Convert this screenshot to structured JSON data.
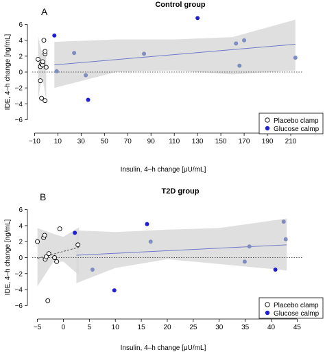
{
  "colors": {
    "glucose": "#1f1fd1",
    "glucose_faded": "#7f8cc1",
    "placebo_stroke": "#000000",
    "band": "#d9d9d9",
    "fit_glucose": "#6f79c9",
    "fit_placebo": "#555555"
  },
  "chart_data": [
    {
      "type": "scatter",
      "panel_letter": "A",
      "title": "Control group",
      "xlabel": "Insulin, 4–h change [μU/mL]",
      "ylabel": "IDE, 4–h change [ng/mL]",
      "xlim": [
        -12,
        220
      ],
      "ylim": [
        -7,
        7
      ],
      "x_ticks": [
        -10,
        10,
        30,
        50,
        70,
        90,
        110,
        130,
        150,
        170,
        190,
        210
      ],
      "y_ticks": [
        -6,
        -4,
        -2,
        0,
        2,
        4,
        6
      ],
      "legend": {
        "position": "bottom-right",
        "entries": [
          "Placebo clamp",
          "Glucose calmp"
        ]
      },
      "series": [
        {
          "name": "Placebo clamp",
          "x": [
            -7,
            -5,
            -5,
            -4,
            -3,
            -3,
            -2,
            -1,
            -1,
            0,
            -4,
            -1
          ],
          "y": [
            1.6,
            0.7,
            -1.1,
            1.0,
            0.9,
            1.3,
            4.0,
            2.3,
            2.6,
            0.6,
            -3.3,
            -3.6
          ]
        },
        {
          "name": "Glucose calmp",
          "x": [
            7,
            9,
            24,
            34,
            36,
            84,
            130,
            163,
            166,
            170,
            214
          ],
          "y": [
            4.6,
            0.1,
            2.4,
            -0.4,
            -3.5,
            2.3,
            6.8,
            3.6,
            0.8,
            4.0,
            1.8
          ]
        }
      ],
      "fit_placebo": {
        "x": [
          -7,
          0
        ],
        "y": [
          0.5,
          0.7
        ]
      },
      "band_placebo": {
        "x": [
          -7,
          -3.5,
          0
        ],
        "upper": [
          4.5,
          2.3,
          3.0
        ],
        "lower": [
          -3.5,
          -0.5,
          -3.5
        ]
      },
      "fit_glucose": {
        "x": [
          7,
          214
        ],
        "y": [
          0.9,
          3.5
        ]
      },
      "band_glucose": {
        "x": [
          7,
          60,
          110,
          160,
          214
        ],
        "upper": [
          3.8,
          4.1,
          4.1,
          4.4,
          6.6
        ],
        "lower": [
          -2.0,
          0.0,
          0.2,
          -0.3,
          0.2
        ]
      },
      "reference_line": 0
    },
    {
      "type": "scatter",
      "panel_letter": "B",
      "title": "T2D group",
      "xlabel": "Insulin, 4–h change [μU/mL]",
      "ylabel": "IDE, 4–h change [ng/mL]",
      "xlim": [
        -6,
        46
      ],
      "ylim": [
        -7,
        7
      ],
      "x_ticks": [
        -5,
        0,
        5,
        10,
        15,
        20,
        25,
        30,
        35,
        40,
        45
      ],
      "y_ticks": [
        -6,
        -4,
        -2,
        0,
        2,
        4,
        6
      ],
      "legend": {
        "position": "bottom-right",
        "entries": [
          "Placebo clamp",
          "Glucose calmp"
        ]
      },
      "series": [
        {
          "name": "Placebo clamp",
          "x": [
            -5,
            -3.8,
            -3.6,
            -3.5,
            -3.3,
            -2.8,
            -1.7,
            -1.3,
            -0.7,
            2.8,
            -3.0
          ],
          "y": [
            2.0,
            2.5,
            2.8,
            -0.2,
            0.1,
            0.5,
            0.0,
            -0.5,
            3.6,
            1.6,
            -5.4
          ]
        },
        {
          "name": "Glucose calmp",
          "x": [
            2.2,
            5.6,
            9.8,
            16.1,
            16.8,
            34.9,
            35.8,
            40.8,
            42.4,
            42.8
          ],
          "y": [
            3.1,
            -1.5,
            -4.1,
            4.2,
            2.0,
            -0.5,
            1.4,
            -1.5,
            4.5,
            2.3
          ]
        }
      ],
      "fit_placebo": {
        "x": [
          -5,
          3
        ],
        "y": [
          -0.1,
          1.3
        ]
      },
      "band_placebo": {
        "x": [
          -5,
          -2,
          0,
          3
        ],
        "upper": [
          3.7,
          3.0,
          2.6,
          3.8
        ],
        "lower": [
          -3.6,
          -0.6,
          -0.5,
          -2.2
        ]
      },
      "fit_glucose": {
        "x": [
          2.5,
          43
        ],
        "y": [
          0.3,
          1.6
        ]
      },
      "band_glucose": {
        "x": [
          2.5,
          10,
          20,
          30,
          43
        ],
        "upper": [
          3.4,
          3.2,
          3.5,
          3.7,
          4.9
        ],
        "lower": [
          -3.2,
          -1.3,
          -0.2,
          -0.8,
          -1.6
        ]
      },
      "reference_line": 0
    }
  ]
}
